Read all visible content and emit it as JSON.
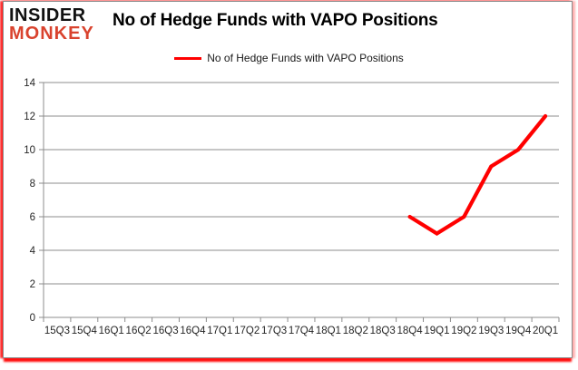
{
  "logo": {
    "line1": "INSIDER",
    "line2": "MONKEY",
    "accent_color": "#d9432e"
  },
  "header": {
    "title": "No of Hedge Funds with VAPO Positions"
  },
  "legend": {
    "label": "No of Hedge Funds with VAPO Positions",
    "line_color": "#ff0000"
  },
  "chart_data": {
    "type": "line",
    "title": "No of Hedge Funds with VAPO Positions",
    "categories": [
      "15Q3",
      "15Q4",
      "16Q1",
      "16Q2",
      "16Q3",
      "16Q4",
      "17Q1",
      "17Q2",
      "17Q3",
      "17Q4",
      "18Q1",
      "18Q2",
      "18Q3",
      "18Q4",
      "19Q1",
      "19Q2",
      "19Q3",
      "19Q4",
      "20Q1"
    ],
    "series": [
      {
        "name": "No of Hedge Funds with VAPO Positions",
        "color": "#ff0000",
        "values": [
          null,
          null,
          null,
          null,
          null,
          null,
          null,
          null,
          null,
          null,
          null,
          null,
          null,
          6,
          5,
          6,
          9,
          10,
          12
        ]
      }
    ],
    "xlabel": "",
    "ylabel": "",
    "ylim": [
      0,
      14
    ],
    "yticks": [
      0,
      2,
      4,
      6,
      8,
      10,
      12,
      14
    ],
    "grid": true,
    "gridline_color": "#8c8c8c",
    "axis_text_color": "#262626",
    "legend_position": "top-center"
  }
}
